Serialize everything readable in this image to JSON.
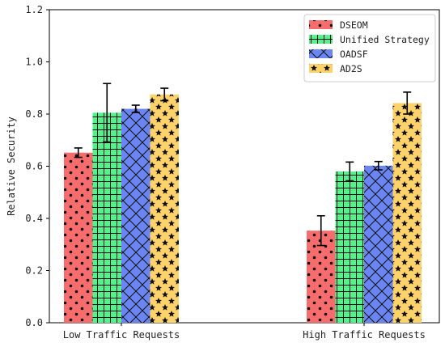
{
  "chart_data": {
    "type": "bar",
    "categories": [
      "Low Traffic Requests",
      "High Traffic Requests"
    ],
    "ylabel": "Relative Security",
    "xlabel": "",
    "ylim": [
      0,
      1.2
    ],
    "yticks": [
      "0.0",
      "0.2",
      "0.4",
      "0.6",
      "0.8",
      "1.0",
      "1.2"
    ],
    "grid": false,
    "legend_position": "top-right",
    "series": [
      {
        "name": "DSEOM",
        "color": "#f76d6d",
        "hatch": "dots",
        "values": [
          0.652,
          0.353
        ],
        "errors": [
          0.018,
          0.057
        ]
      },
      {
        "name": "Unified Strategy",
        "color": "#57f08f",
        "hatch": "grid",
        "values": [
          0.805,
          0.58
        ],
        "errors": [
          0.112,
          0.036
        ]
      },
      {
        "name": "OADSF",
        "color": "#6b86f2",
        "hatch": "crosshatch",
        "values": [
          0.82,
          0.602
        ],
        "errors": [
          0.014,
          0.016
        ]
      },
      {
        "name": "AD2S",
        "color": "#fbd36a",
        "hatch": "stars",
        "values": [
          0.875,
          0.842
        ],
        "errors": [
          0.024,
          0.042
        ]
      }
    ]
  }
}
